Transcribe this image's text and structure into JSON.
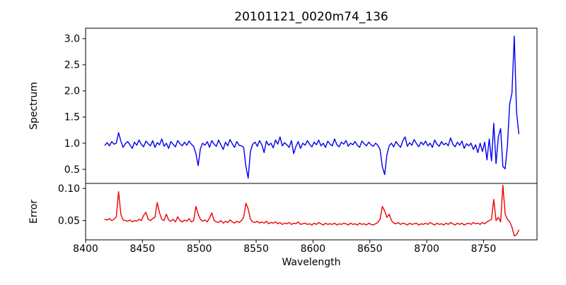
{
  "title": "20101121_0020m74_136",
  "chart_data": [
    {
      "type": "line",
      "panel": "spectrum",
      "title": "20101121_0020m74_136",
      "ylabel": "Spectrum",
      "line_color": "#0000ee",
      "grid": false,
      "legend": null,
      "xlim": [
        8400,
        8797
      ],
      "ylim": [
        0.23,
        3.2
      ],
      "yticks": [
        0.5,
        1.0,
        1.5,
        2.0,
        2.5,
        3.0
      ],
      "ytick_labels": [
        "0.5",
        "1.0",
        "1.5",
        "2.0",
        "2.5",
        "3.0"
      ],
      "x_start": 8417,
      "x_step": 2,
      "values": [
        0.96,
        1.01,
        0.95,
        1.03,
        0.98,
        1.0,
        1.2,
        1.04,
        0.92,
        0.99,
        1.03,
        0.97,
        0.9,
        1.02,
        0.96,
        1.06,
        0.98,
        0.93,
        1.04,
        0.99,
        0.95,
        1.05,
        0.92,
        1.01,
        0.97,
        1.08,
        0.94,
        1.0,
        0.9,
        1.03,
        0.98,
        0.93,
        1.05,
        0.99,
        0.95,
        1.02,
        0.96,
        1.04,
        0.98,
        0.94,
        0.8,
        0.57,
        0.9,
        1.0,
        0.96,
        1.03,
        0.92,
        1.05,
        0.98,
        0.94,
        1.06,
        0.97,
        0.88,
        1.02,
        0.95,
        1.07,
        0.99,
        0.92,
        1.03,
        0.96,
        0.95,
        0.92,
        0.55,
        0.33,
        0.85,
        0.98,
        1.02,
        0.94,
        1.05,
        0.97,
        0.82,
        1.04,
        0.96,
        1.0,
        0.91,
        1.06,
        0.98,
        1.12,
        0.95,
        1.01,
        0.97,
        0.92,
        1.05,
        0.8,
        0.94,
        1.03,
        0.9,
        1.0,
        0.96,
        1.05,
        0.98,
        0.93,
        1.02,
        0.97,
        1.06,
        0.95,
        1.0,
        0.92,
        1.04,
        0.98,
        0.95,
        1.08,
        0.97,
        0.93,
        1.02,
        0.98,
        1.05,
        0.94,
        1.0,
        0.97,
        1.03,
        0.96,
        0.92,
        1.04,
        0.99,
        0.95,
        1.02,
        0.97,
        0.94,
        1.0,
        0.96,
        0.88,
        0.55,
        0.4,
        0.78,
        0.95,
        1.0,
        0.93,
        1.03,
        0.97,
        0.92,
        1.05,
        1.12,
        0.94,
        1.01,
        0.96,
        1.07,
        0.99,
        0.93,
        1.02,
        0.97,
        1.04,
        0.95,
        1.0,
        0.92,
        1.06,
        0.98,
        0.94,
        1.03,
        0.97,
        1.0,
        0.95,
        1.1,
        0.98,
        0.93,
        1.02,
        0.96,
        1.04,
        0.9,
        0.99,
        0.95,
        1.0,
        0.88,
        0.97,
        0.82,
        1.0,
        0.84,
        1.02,
        0.68,
        1.08,
        0.66,
        1.38,
        0.61,
        1.12,
        1.28,
        0.55,
        0.51,
        0.95,
        1.75,
        1.96,
        3.05,
        1.6,
        1.18
      ]
    },
    {
      "type": "line",
      "panel": "error",
      "ylabel": "Error",
      "xlabel": "Wavelength",
      "line_color": "#ee0000",
      "grid": false,
      "legend": null,
      "xlim": [
        8400,
        8797
      ],
      "ylim": [
        0.02,
        0.1078
      ],
      "yticks": [
        0.05,
        0.1
      ],
      "ytick_labels": [
        "0.05",
        "0.10"
      ],
      "xticks": [
        8400,
        8450,
        8500,
        8550,
        8600,
        8650,
        8700,
        8750
      ],
      "xtick_labels": [
        "8400",
        "8450",
        "8500",
        "8550",
        "8600",
        "8650",
        "8700",
        "8750"
      ],
      "x_start": 8417,
      "x_step": 2,
      "values": [
        0.052,
        0.051,
        0.053,
        0.05,
        0.052,
        0.056,
        0.095,
        0.06,
        0.051,
        0.05,
        0.049,
        0.051,
        0.048,
        0.05,
        0.049,
        0.052,
        0.05,
        0.058,
        0.063,
        0.052,
        0.05,
        0.053,
        0.055,
        0.078,
        0.062,
        0.052,
        0.05,
        0.06,
        0.051,
        0.049,
        0.052,
        0.048,
        0.056,
        0.05,
        0.048,
        0.051,
        0.049,
        0.053,
        0.048,
        0.05,
        0.072,
        0.06,
        0.052,
        0.049,
        0.051,
        0.048,
        0.054,
        0.062,
        0.05,
        0.048,
        0.047,
        0.05,
        0.046,
        0.049,
        0.047,
        0.051,
        0.048,
        0.046,
        0.049,
        0.047,
        0.05,
        0.055,
        0.077,
        0.068,
        0.052,
        0.048,
        0.047,
        0.049,
        0.046,
        0.048,
        0.046,
        0.049,
        0.045,
        0.047,
        0.046,
        0.048,
        0.045,
        0.047,
        0.044,
        0.046,
        0.045,
        0.047,
        0.044,
        0.046,
        0.045,
        0.048,
        0.044,
        0.045,
        0.046,
        0.044,
        0.045,
        0.043,
        0.046,
        0.044,
        0.047,
        0.045,
        0.043,
        0.046,
        0.044,
        0.045,
        0.044,
        0.046,
        0.043,
        0.045,
        0.044,
        0.046,
        0.045,
        0.043,
        0.046,
        0.044,
        0.045,
        0.043,
        0.046,
        0.044,
        0.045,
        0.043,
        0.046,
        0.044,
        0.043,
        0.045,
        0.047,
        0.052,
        0.072,
        0.065,
        0.055,
        0.06,
        0.05,
        0.046,
        0.045,
        0.047,
        0.044,
        0.046,
        0.045,
        0.043,
        0.046,
        0.044,
        0.045,
        0.046,
        0.043,
        0.045,
        0.044,
        0.046,
        0.044,
        0.047,
        0.045,
        0.043,
        0.046,
        0.044,
        0.045,
        0.043,
        0.046,
        0.044,
        0.047,
        0.045,
        0.043,
        0.046,
        0.044,
        0.046,
        0.043,
        0.045,
        0.046,
        0.044,
        0.047,
        0.045,
        0.046,
        0.044,
        0.047,
        0.045,
        0.048,
        0.05,
        0.052,
        0.083,
        0.05,
        0.055,
        0.048,
        0.105,
        0.06,
        0.052,
        0.048,
        0.04,
        0.026,
        0.028,
        0.035
      ]
    }
  ]
}
